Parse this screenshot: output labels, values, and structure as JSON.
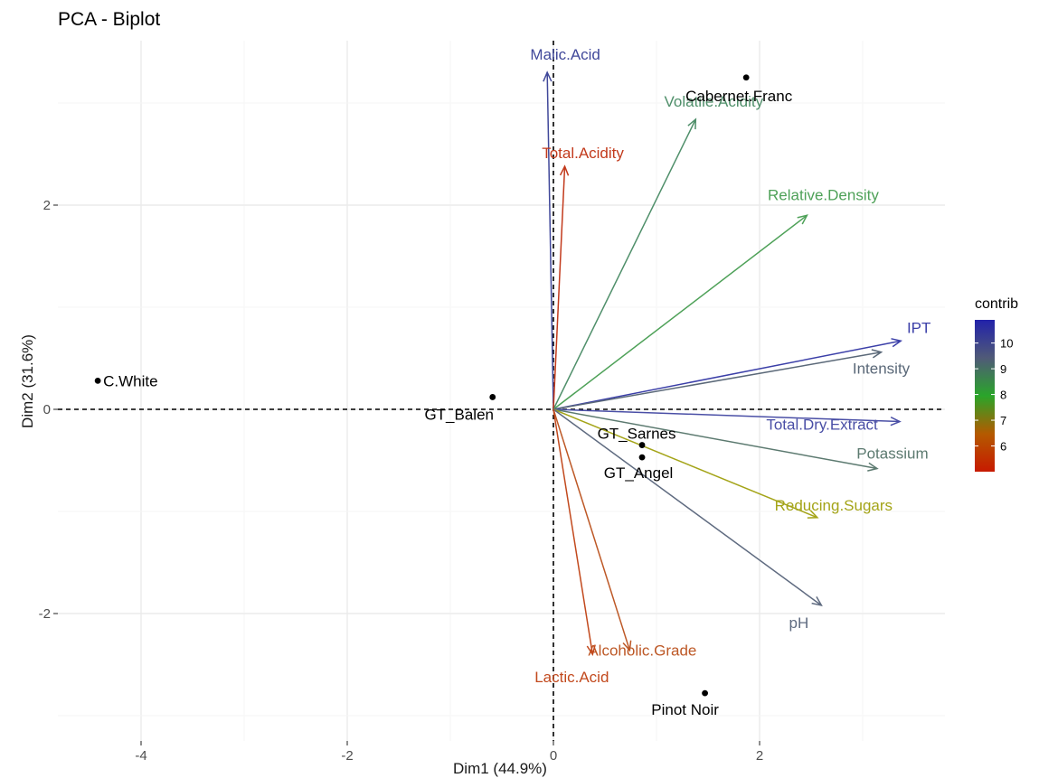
{
  "chart_data": {
    "type": "scatter",
    "subtype": "pca-biplot",
    "title": "PCA - Biplot",
    "xlabel": "Dim1 (44.9%)",
    "ylabel": "Dim2 (31.6%)",
    "xlim": [
      -4.7,
      3.55
    ],
    "ylim": [
      -3.0,
      3.3
    ],
    "xticks": [
      -4,
      -2,
      0,
      2
    ],
    "yticks": [
      -2,
      0,
      2
    ],
    "xtick_labels": [
      "-4",
      "-2",
      "0",
      "2"
    ],
    "ytick_labels": [
      "-2",
      "0",
      "2"
    ],
    "grid": true,
    "individuals": [
      {
        "label": "Cabernet.Franc",
        "x": 1.87,
        "y": 3.25
      },
      {
        "label": "C.White",
        "x": -4.42,
        "y": 0.28
      },
      {
        "label": "GT_Balen",
        "x": -0.59,
        "y": 0.12
      },
      {
        "label": "GT_Sarnes",
        "x": 0.86,
        "y": -0.35
      },
      {
        "label": "GT_Angel",
        "x": 0.86,
        "y": -0.47
      },
      {
        "label": "Pinot Noir",
        "x": 1.47,
        "y": -2.78
      }
    ],
    "variables": [
      {
        "label": "Malic.Acid",
        "x": -0.06,
        "y": 3.3,
        "contrib": 10.4,
        "color": "#40489a"
      },
      {
        "label": "Volatile.Acidity",
        "x": 1.38,
        "y": 2.84,
        "contrib": 8.7,
        "color": "#4f8f6a"
      },
      {
        "label": "Total.Acidity",
        "x": 0.11,
        "y": 2.38,
        "contrib": 5.2,
        "color": "#c23a1c"
      },
      {
        "label": "Relative.Density",
        "x": 2.46,
        "y": 1.9,
        "contrib": 8.3,
        "color": "#4ea158"
      },
      {
        "label": "IPT",
        "x": 3.37,
        "y": 0.67,
        "contrib": 10.5,
        "color": "#3b3fa8"
      },
      {
        "label": "Intensity",
        "x": 3.18,
        "y": 0.56,
        "contrib": 9.6,
        "color": "#5a6878"
      },
      {
        "label": "Total.Dry.Extract",
        "x": 3.36,
        "y": -0.12,
        "contrib": 10.3,
        "color": "#4a4fa6"
      },
      {
        "label": "Potassium",
        "x": 3.14,
        "y": -0.58,
        "contrib": 9.1,
        "color": "#5c7a70"
      },
      {
        "label": "Reducing.Sugars",
        "x": 2.56,
        "y": -1.06,
        "contrib": 7.5,
        "color": "#a4a418"
      },
      {
        "label": "pH",
        "x": 2.6,
        "y": -1.92,
        "contrib": 9.5,
        "color": "#5f6b80"
      },
      {
        "label": "Alcoholic.Grade",
        "x": 0.74,
        "y": -2.36,
        "contrib": 6.2,
        "color": "#bd5826"
      },
      {
        "label": "Lactic.Acid",
        "x": 0.38,
        "y": -2.4,
        "contrib": 6.0,
        "color": "#c2491d"
      }
    ],
    "legend": {
      "title": "contrib",
      "placement": "right",
      "ticks": [
        6,
        7,
        8,
        9,
        10
      ],
      "range": [
        5.0,
        10.9
      ],
      "gradient": [
        "#c71a00",
        "#b45a00",
        "#2aa52a",
        "#505a78",
        "#2222aa"
      ]
    }
  }
}
